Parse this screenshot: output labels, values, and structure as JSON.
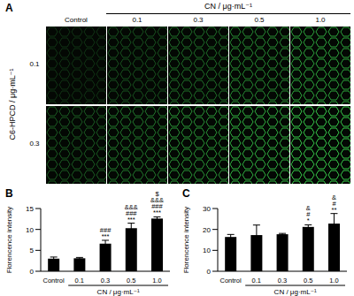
{
  "panel_a": {
    "panel_label": "A",
    "column_title": "CN / μg·mL⁻¹",
    "columns": [
      "Control",
      "0.1",
      "0.3",
      "0.5",
      "1.0"
    ],
    "row_title": "C6-HPCD / μg·mL⁻¹",
    "rows": [
      "0.1",
      "0.3"
    ]
  },
  "chart_data": [
    {
      "type": "bar",
      "panel_label": "B",
      "y_label": "Florencence intensity",
      "x_label": "CN / μg·mL⁻¹",
      "categories": [
        "Control",
        "0.1",
        "0.3",
        "0.5",
        "1.0"
      ],
      "values": [
        3.0,
        3.1,
        6.6,
        10.3,
        12.6
      ],
      "errors": [
        0.4,
        0.2,
        0.8,
        1.2,
        0.4
      ],
      "annotations": [
        [],
        [],
        [
          "###",
          "***"
        ],
        [
          "&&&",
          "###",
          "***"
        ],
        [
          "$",
          "&&&",
          "###",
          "***"
        ]
      ],
      "color": "#000000",
      "ylim": [
        0,
        15
      ],
      "yticks": [
        0,
        5,
        10,
        15
      ]
    },
    {
      "type": "bar",
      "panel_label": "C",
      "y_label": "Florencence intensity",
      "x_label": "CN / μg·mL⁻¹",
      "categories": [
        "Control",
        "0.1",
        "0.3",
        "0.5",
        "1.0"
      ],
      "values": [
        16.4,
        17.3,
        17.7,
        21.2,
        22.8
      ],
      "errors": [
        1.2,
        4.8,
        0.4,
        1.0,
        4.8
      ],
      "annotations": [
        [],
        [],
        [],
        [
          "&",
          "#",
          "*"
        ],
        [
          "&",
          "#",
          "**"
        ]
      ],
      "color": "#000000",
      "ylim": [
        0,
        30
      ],
      "yticks": [
        0,
        10,
        20,
        30
      ]
    }
  ]
}
